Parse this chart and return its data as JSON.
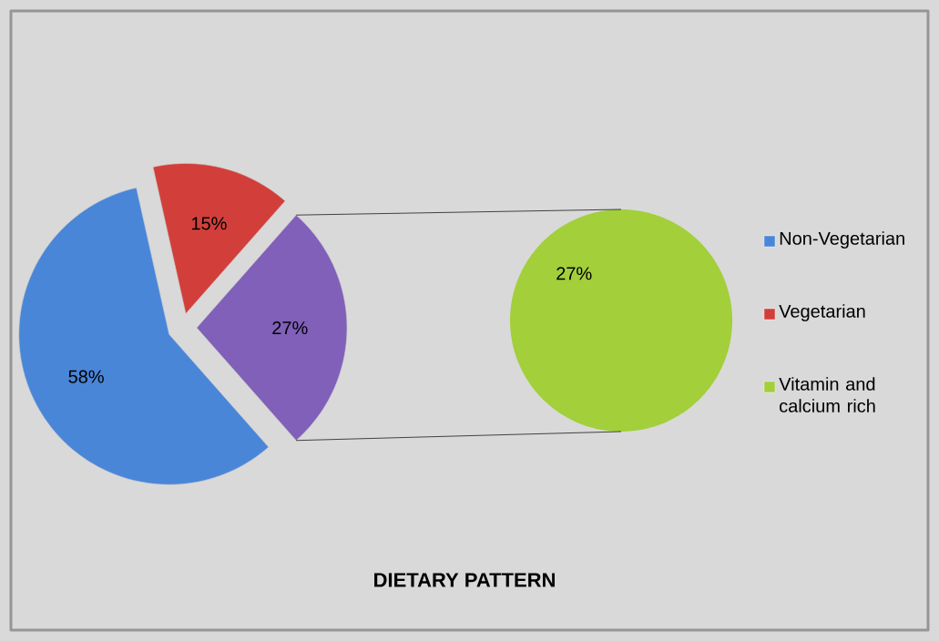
{
  "chart_data": [
    {
      "type": "pie",
      "title": "DIETARY PATTERN",
      "categories": [
        "Non-Vegetarian",
        "Vegetarian",
        null
      ],
      "values": [
        58,
        15,
        27
      ],
      "colors": [
        "#4a86d8",
        "#d23f3a",
        "#8060b8"
      ],
      "value_labels": [
        "58%",
        "15%",
        "27%"
      ],
      "legend": "right"
    },
    {
      "type": "pie",
      "categories": [
        "Vitamin and calcium rich"
      ],
      "values": [
        27
      ],
      "colors": [
        "#a2cf3a"
      ],
      "value_labels": [
        "27%"
      ],
      "legend": "right"
    }
  ]
}
